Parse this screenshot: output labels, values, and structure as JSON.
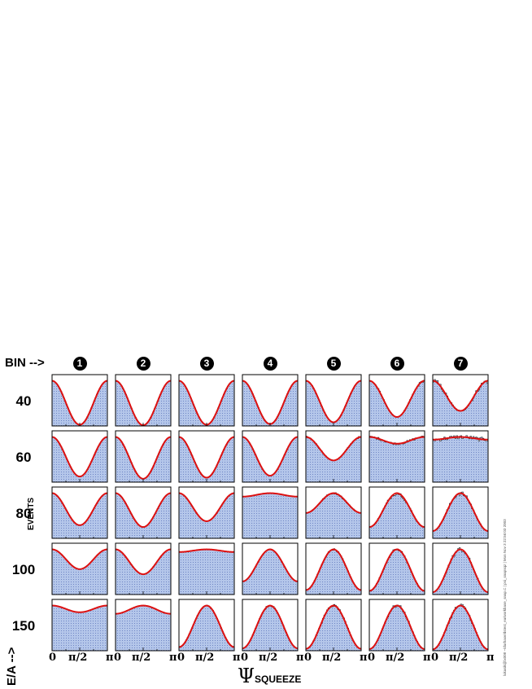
{
  "labels": {
    "bin_header": "BIN -->",
    "ea_label": "E/A -->",
    "events_label": "EVENTS",
    "xlabel_main": "Ψ",
    "xlabel_sub": "SQUEEZE",
    "stamp": "lukasik@lx008 ~/durbase/dstest_ea/workbase_snap.C | psi_snapsqz | Mon Nov 3 22:56:03 2003"
  },
  "colors": {
    "fit_line": "#dd1111",
    "hist_fill": "#b4c6ea",
    "hist_edge": "#6f86c4",
    "frame": "#000000"
  },
  "chart_data": {
    "type": "grid of histograms with fitted curves",
    "bins": [
      "1",
      "2",
      "3",
      "4",
      "5",
      "6",
      "7"
    ],
    "energies": [
      "40",
      "60",
      "80",
      "100",
      "150"
    ],
    "x_tick_labels": [
      "0",
      "π/2",
      "π"
    ],
    "xlim": [
      0,
      3.1416
    ],
    "fit_model": "1 + a2·cos(2Ψ), normalized; a2 = relative anisotropy",
    "a2": [
      [
        0.95,
        0.97,
        0.95,
        0.92,
        0.85,
        0.67,
        0.5
      ],
      [
        0.78,
        0.86,
        0.82,
        0.75,
        0.35,
        0.08,
        -0.03
      ],
      [
        0.55,
        0.6,
        0.45,
        -0.04,
        -0.28,
        -0.6,
        -0.72
      ],
      [
        0.28,
        0.38,
        -0.03,
        -0.55,
        -0.82,
        -0.85,
        -0.9
      ],
      [
        0.08,
        -0.1,
        -0.85,
        -0.9,
        -0.92,
        -0.93,
        -0.94
      ]
    ],
    "noise": [
      [
        0,
        0,
        0,
        0,
        0.01,
        0.03,
        0.06
      ],
      [
        0,
        0,
        0,
        0,
        0.02,
        0.03,
        0.05
      ],
      [
        0,
        0,
        0,
        0.01,
        0.02,
        0.04,
        0.05
      ],
      [
        0,
        0,
        0,
        0,
        0.02,
        0.03,
        0.05
      ],
      [
        0,
        0.01,
        0.01,
        0.02,
        0.03,
        0.04,
        0.05
      ]
    ]
  }
}
